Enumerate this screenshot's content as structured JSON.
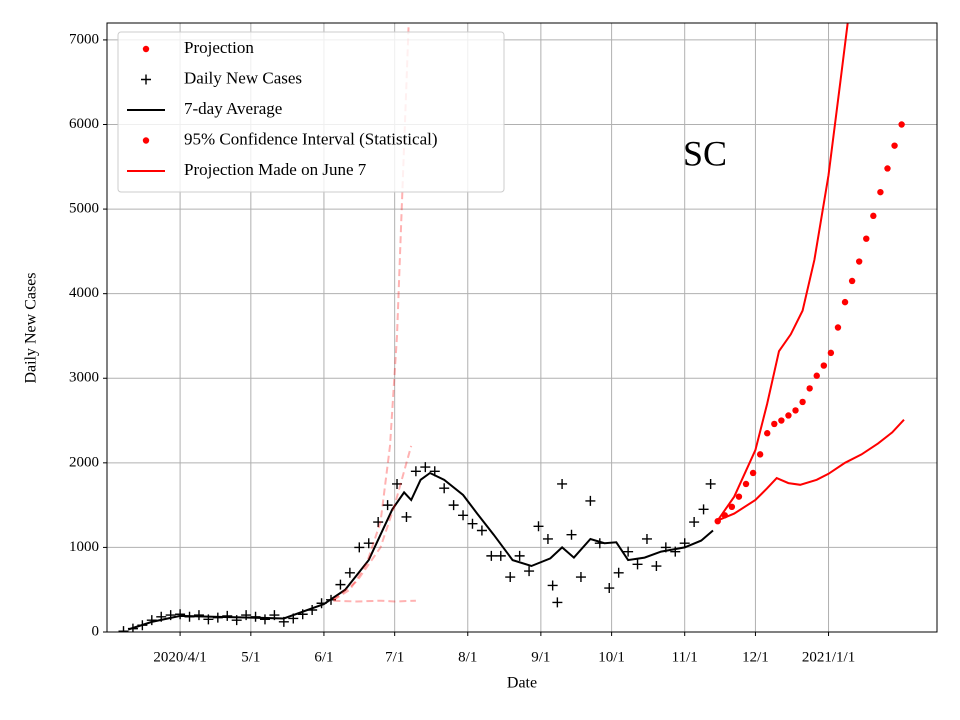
{
  "chart_data": {
    "type": "line",
    "xlabel": "Date",
    "ylabel": "Daily New Cases",
    "annotation": "SC",
    "grid": true,
    "legend": "upper left",
    "xlim": [
      "2020-03-01",
      "2021-02-16"
    ],
    "xticks": [
      {
        "value": "2020-04-01",
        "label": "2020/4/1"
      },
      {
        "value": "2020-05-01",
        "label": "5/1"
      },
      {
        "value": "2020-06-01",
        "label": "6/1"
      },
      {
        "value": "2020-07-01",
        "label": "7/1"
      },
      {
        "value": "2020-08-01",
        "label": "8/1"
      },
      {
        "value": "2020-09-01",
        "label": "9/1"
      },
      {
        "value": "2020-10-01",
        "label": "10/1"
      },
      {
        "value": "2020-11-01",
        "label": "11/1"
      },
      {
        "value": "2020-12-01",
        "label": "12/1"
      },
      {
        "value": "2021-01-01",
        "label": "2021/1/1"
      }
    ],
    "ylim": [
      0,
      7200
    ],
    "yticks": [
      0,
      1000,
      2000,
      3000,
      4000,
      5000,
      6000,
      7000
    ],
    "series": [
      {
        "name": "Projection",
        "color": "#ff0000",
        "marker": "o",
        "linestyle": "none",
        "x": [
          "2020-11-15",
          "2020-11-18",
          "2020-11-21",
          "2020-11-24",
          "2020-11-27",
          "2020-11-30",
          "2020-12-03",
          "2020-12-06",
          "2020-12-09",
          "2020-12-12",
          "2020-12-15",
          "2020-12-18",
          "2020-12-21",
          "2020-12-24",
          "2020-12-27",
          "2020-12-30",
          "2021-01-02",
          "2021-01-05",
          "2021-01-08",
          "2021-01-11",
          "2021-01-14",
          "2021-01-17",
          "2021-01-20",
          "2021-01-23",
          "2021-01-26",
          "2021-01-29",
          "2021-02-01"
        ],
        "values": [
          1310,
          1380,
          1480,
          1600,
          1750,
          1880,
          2100,
          2350,
          2460,
          2500,
          2560,
          2620,
          2720,
          2880,
          3030,
          3150,
          3300,
          3600,
          3900,
          4150,
          4380,
          4650,
          4920,
          5200,
          5480,
          5750,
          6000
        ]
      },
      {
        "name": "Daily New Cases",
        "color": "#000000",
        "marker": "+",
        "linestyle": "none",
        "x": [
          "2020-03-08",
          "2020-03-12",
          "2020-03-16",
          "2020-03-20",
          "2020-03-24",
          "2020-03-28",
          "2020-04-01",
          "2020-04-05",
          "2020-04-09",
          "2020-04-13",
          "2020-04-17",
          "2020-04-21",
          "2020-04-25",
          "2020-04-29",
          "2020-05-03",
          "2020-05-07",
          "2020-05-11",
          "2020-05-15",
          "2020-05-19",
          "2020-05-23",
          "2020-05-27",
          "2020-05-31",
          "2020-06-04",
          "2020-06-08",
          "2020-06-12",
          "2020-06-16",
          "2020-06-20",
          "2020-06-24",
          "2020-06-28",
          "2020-07-02",
          "2020-07-06",
          "2020-07-10",
          "2020-07-14",
          "2020-07-18",
          "2020-07-22",
          "2020-07-26",
          "2020-07-30",
          "2020-08-03",
          "2020-08-07",
          "2020-08-11",
          "2020-08-15",
          "2020-08-19",
          "2020-08-23",
          "2020-08-27",
          "2020-08-31",
          "2020-09-04",
          "2020-09-06",
          "2020-09-08",
          "2020-09-10",
          "2020-09-14",
          "2020-09-18",
          "2020-09-22",
          "2020-09-26",
          "2020-09-30",
          "2020-10-04",
          "2020-10-08",
          "2020-10-12",
          "2020-10-16",
          "2020-10-20",
          "2020-10-24",
          "2020-10-28",
          "2020-11-01",
          "2020-11-05",
          "2020-11-09",
          "2020-11-12"
        ],
        "values": [
          10,
          40,
          80,
          140,
          180,
          200,
          210,
          180,
          200,
          150,
          170,
          190,
          140,
          200,
          180,
          150,
          200,
          120,
          160,
          210,
          260,
          340,
          380,
          560,
          700,
          1000,
          1050,
          1300,
          1500,
          1750,
          1360,
          1900,
          1950,
          1900,
          1700,
          1500,
          1380,
          1280,
          1200,
          900,
          900,
          650,
          900,
          720,
          1250,
          1100,
          550,
          350,
          1750,
          1150,
          650,
          1550,
          1050,
          520,
          700,
          950,
          800,
          1100,
          780,
          1000,
          950,
          1050,
          1300,
          1450,
          1750
        ]
      },
      {
        "name": "7-day Average",
        "color": "#000000",
        "marker": "none",
        "linestyle": "solid",
        "x": [
          "2020-03-10",
          "2020-03-20",
          "2020-04-01",
          "2020-04-15",
          "2020-05-01",
          "2020-05-15",
          "2020-06-01",
          "2020-06-10",
          "2020-06-20",
          "2020-06-30",
          "2020-07-05",
          "2020-07-08",
          "2020-07-12",
          "2020-07-16",
          "2020-07-22",
          "2020-07-30",
          "2020-08-05",
          "2020-08-12",
          "2020-08-20",
          "2020-08-28",
          "2020-09-05",
          "2020-09-10",
          "2020-09-15",
          "2020-09-22",
          "2020-09-28",
          "2020-10-03",
          "2020-10-08",
          "2020-10-15",
          "2020-10-22",
          "2020-11-01",
          "2020-11-08",
          "2020-11-13"
        ],
        "values": [
          30,
          120,
          190,
          180,
          170,
          160,
          330,
          500,
          850,
          1450,
          1650,
          1560,
          1800,
          1880,
          1800,
          1620,
          1400,
          1150,
          850,
          780,
          870,
          1000,
          880,
          1100,
          1050,
          1060,
          850,
          880,
          950,
          1000,
          1080,
          1200
        ]
      },
      {
        "name": "95% Confidence Interval (Statistical)",
        "color": "#ff0000",
        "marker": "o",
        "linestyle": "solid",
        "x_upper": [
          "2020-11-15",
          "2020-11-22",
          "2020-12-01",
          "2020-12-06",
          "2020-12-11",
          "2020-12-16",
          "2020-12-21",
          "2020-12-26",
          "2021-01-01",
          "2021-01-06",
          "2021-01-10"
        ],
        "upper": [
          1320,
          1600,
          2150,
          2700,
          3320,
          3520,
          3800,
          4400,
          5400,
          6500,
          7400
        ],
        "x_lower": [
          "2020-11-15",
          "2020-11-22",
          "2020-12-01",
          "2020-12-06",
          "2020-12-10",
          "2020-12-15",
          "2020-12-20",
          "2020-12-27",
          "2021-01-01",
          "2021-01-08",
          "2021-01-15",
          "2021-01-22",
          "2021-01-28",
          "2021-02-02"
        ],
        "lower": [
          1320,
          1400,
          1560,
          1700,
          1820,
          1760,
          1740,
          1800,
          1870,
          2000,
          2100,
          2230,
          2360,
          2510
        ]
      },
      {
        "name": "Projection Made on June 7",
        "color": "#ff0000",
        "marker": "none",
        "linestyle": "dashed",
        "alpha": 0.3,
        "x": [
          "2020-06-05",
          "2020-06-15",
          "2020-06-25",
          "2020-07-01",
          "2020-07-05",
          "2020-07-08"
        ],
        "values": [
          380,
          600,
          1000,
          1500,
          1900,
          2200
        ],
        "x_upper": [
          "2020-06-05",
          "2020-06-12",
          "2020-06-19",
          "2020-06-25",
          "2020-06-29",
          "2020-07-02",
          "2020-07-04",
          "2020-07-06",
          "2020-07-08"
        ],
        "upper": [
          380,
          500,
          800,
          1300,
          2200,
          3500,
          5000,
          6500,
          8000
        ],
        "x_lower": [
          "2020-06-05",
          "2020-06-15",
          "2020-06-25",
          "2020-07-01",
          "2020-07-10"
        ],
        "lower": [
          370,
          360,
          370,
          360,
          370
        ]
      }
    ]
  }
}
